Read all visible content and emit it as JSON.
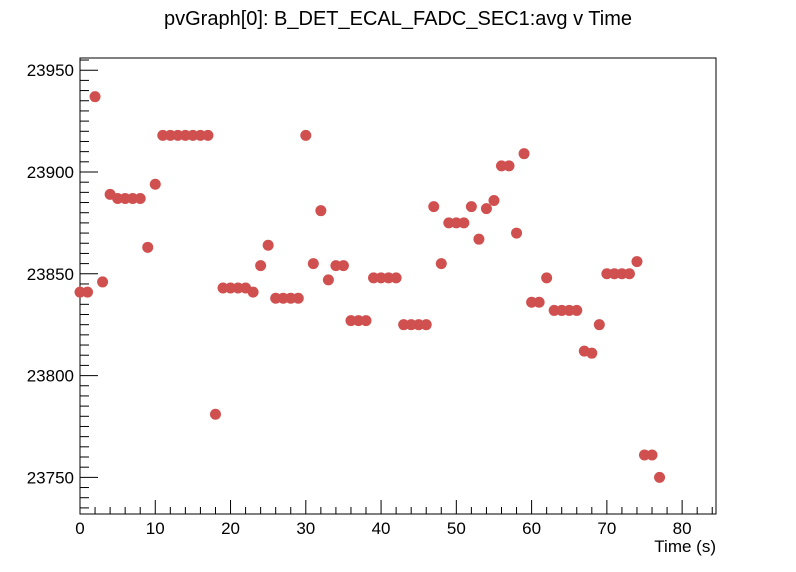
{
  "chart_data": {
    "type": "scatter",
    "title": "pvGraph[0]: B_DET_ECAL_FADC_SEC1:avg v Time",
    "xlabel": "Time (s)",
    "ylabel": "",
    "xlim": [
      0,
      84.5
    ],
    "ylim": [
      23732,
      23956
    ],
    "x_ticks": [
      0,
      10,
      20,
      30,
      40,
      50,
      60,
      70,
      80
    ],
    "y_ticks": [
      23750,
      23800,
      23850,
      23900,
      23950
    ],
    "grid": false,
    "marker_color": "#d0504f",
    "series": [
      {
        "x": [
          0,
          1,
          2,
          3,
          4,
          5,
          6,
          7,
          8,
          9,
          10,
          11,
          12,
          13,
          14,
          15,
          16,
          17,
          18,
          19,
          20,
          21,
          22,
          23,
          24,
          25,
          26,
          27,
          28,
          29,
          30,
          31,
          32,
          33,
          34,
          35,
          36,
          37,
          38,
          39,
          40,
          41,
          42,
          43,
          44,
          45,
          46,
          47,
          48,
          49,
          50,
          51,
          52,
          53,
          54,
          55,
          56,
          57,
          58,
          59,
          60,
          61,
          62,
          63,
          64,
          65,
          66,
          67,
          68,
          69,
          70,
          71,
          72,
          73,
          74,
          75,
          76,
          77
        ],
        "y": [
          23841,
          23841,
          23937,
          23846,
          23889,
          23887,
          23887,
          23887,
          23887,
          23863,
          23894,
          23918,
          23918,
          23918,
          23918,
          23918,
          23918,
          23918,
          23781,
          23843,
          23843,
          23843,
          23843,
          23841,
          23854,
          23864,
          23838,
          23838,
          23838,
          23838,
          23918,
          23855,
          23881,
          23847,
          23854,
          23854,
          23827,
          23827,
          23827,
          23848,
          23848,
          23848,
          23848,
          23825,
          23825,
          23825,
          23825,
          23883,
          23855,
          23875,
          23875,
          23875,
          23883,
          23867,
          23882,
          23886,
          23903,
          23903,
          23870,
          23909,
          23836,
          23836,
          23848,
          23832,
          23832,
          23832,
          23832,
          23812,
          23811,
          23825,
          23850,
          23850,
          23850,
          23850,
          23856,
          23761,
          23761,
          23750
        ]
      }
    ]
  }
}
